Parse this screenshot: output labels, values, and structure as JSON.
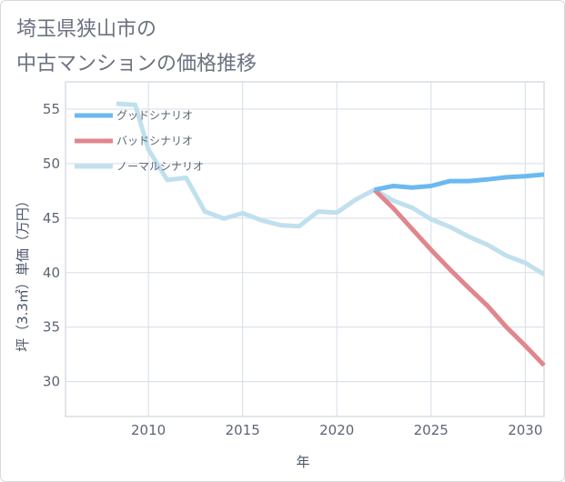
{
  "title": {
    "line1": "埼玉県狭山市の",
    "line2": "中古マンションの価格推移"
  },
  "chart_data": {
    "type": "line",
    "xlabel": "年",
    "ylabel": "坪（3.3㎡）単価（万円）",
    "xlim": [
      2005.6,
      2031
    ],
    "ylim": [
      26.8,
      57.5
    ],
    "xticks": [
      2010,
      2015,
      2020,
      2025,
      2030
    ],
    "yticks": [
      30,
      35,
      40,
      45,
      50,
      55
    ],
    "grid": true,
    "legend_position": "top-left",
    "series": [
      {
        "name": "グッドシナリオ",
        "color": "#6bb9f0",
        "x": [
          2022,
          2023,
          2024,
          2025,
          2026,
          2027,
          2028,
          2029,
          2030,
          2031
        ],
        "y": [
          47.6,
          47.95,
          47.8,
          47.95,
          48.4,
          48.4,
          48.55,
          48.75,
          48.85,
          49.0
        ]
      },
      {
        "name": "バッドシナリオ",
        "color": "#e0868c",
        "x": [
          2022,
          2023,
          2024,
          2025,
          2026,
          2027,
          2028,
          2029,
          2030,
          2031
        ],
        "y": [
          47.6,
          45.9,
          44.0,
          42.1,
          40.3,
          38.6,
          36.95,
          35.0,
          33.3,
          31.5
        ]
      },
      {
        "name": "ノーマルシナリオ",
        "color": "#c0e0ee",
        "x": [
          2008.3,
          2009.3,
          2010,
          2011,
          2012,
          2013,
          2014,
          2015,
          2016,
          2017,
          2018,
          2019,
          2020,
          2021,
          2022,
          2023,
          2024,
          2025,
          2026,
          2027,
          2028,
          2029,
          2030,
          2031
        ],
        "y": [
          55.5,
          55.4,
          51.3,
          48.5,
          48.7,
          45.6,
          44.95,
          45.45,
          44.8,
          44.35,
          44.25,
          45.6,
          45.5,
          46.7,
          47.6,
          46.6,
          45.95,
          44.9,
          44.2,
          43.3,
          42.55,
          41.55,
          40.9,
          39.85
        ]
      }
    ]
  }
}
